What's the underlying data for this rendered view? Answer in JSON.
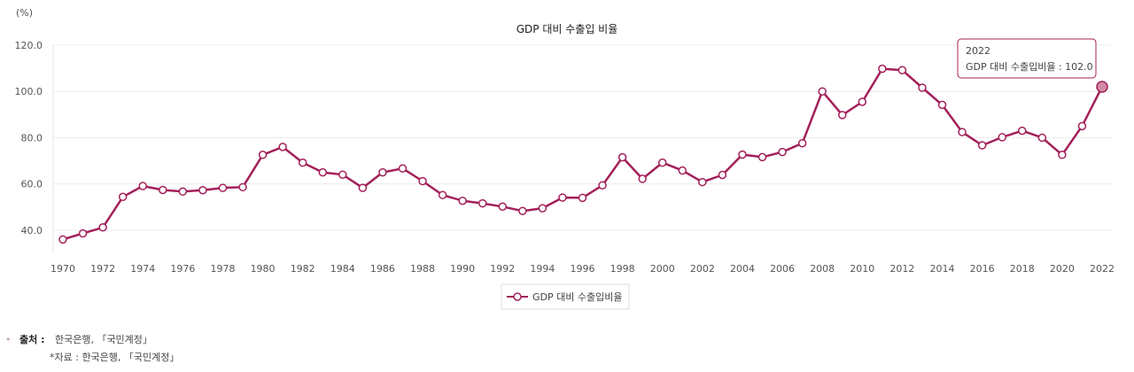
{
  "chart_data": {
    "type": "line",
    "title": "GDP 대비 수출입 비율",
    "unit_label": "(%)",
    "xlabel": "",
    "ylabel": "(%)",
    "ylim": [
      30,
      120
    ],
    "y_ticks": [
      "120.0",
      "100.0",
      "80.0",
      "60.0",
      "40.0"
    ],
    "y_tick_values": [
      120,
      100,
      80,
      60,
      40
    ],
    "x_tick_labels": [
      "1970",
      "1972",
      "1974",
      "1976",
      "1978",
      "1980",
      "1982",
      "1984",
      "1986",
      "1988",
      "1990",
      "1992",
      "1994",
      "1996",
      "1998",
      "2000",
      "2002",
      "2004",
      "2006",
      "2008",
      "2010",
      "2012",
      "2014",
      "2016",
      "2018",
      "2020",
      "2022"
    ],
    "years": [
      1970,
      1971,
      1972,
      1973,
      1974,
      1975,
      1976,
      1977,
      1978,
      1979,
      1980,
      1981,
      1982,
      1983,
      1984,
      1985,
      1986,
      1987,
      1988,
      1989,
      1990,
      1991,
      1992,
      1993,
      1994,
      1995,
      1996,
      1997,
      1998,
      1999,
      2000,
      2001,
      2002,
      2003,
      2004,
      2005,
      2006,
      2007,
      2008,
      2009,
      2010,
      2011,
      2012,
      2013,
      2014,
      2015,
      2016,
      2017,
      2018,
      2019,
      2020,
      2021,
      2022
    ],
    "series": [
      {
        "name": "GDP 대비 수출입비율",
        "color": "#a3205a",
        "values": [
          36.0,
          38.6,
          41.2,
          54.4,
          59.1,
          57.4,
          56.7,
          57.3,
          58.3,
          58.6,
          72.6,
          76.0,
          69.2,
          65.0,
          64.0,
          58.3,
          65.0,
          66.7,
          61.2,
          55.2,
          52.7,
          51.6,
          50.2,
          48.3,
          49.5,
          54.1,
          54.0,
          59.4,
          71.5,
          62.2,
          69.2,
          65.8,
          60.8,
          63.9,
          72.7,
          71.6,
          73.8,
          77.6,
          100.0,
          89.8,
          95.5,
          109.8,
          109.2,
          101.6,
          94.2,
          82.4,
          76.7,
          80.2,
          83.0,
          80.0,
          72.6,
          85.0,
          102.0
        ]
      }
    ],
    "legend": [
      "GDP 대비 수출입비율"
    ],
    "legend_position": "bottom-center",
    "tooltip": {
      "year": "2022",
      "text": "GDP 대비 수출입비율 : 102.0"
    }
  },
  "source": {
    "label": "출처 :",
    "text": "한국은행, 「국민계정」",
    "note": "*자료 : 한국은행, 「국민계정」"
  }
}
